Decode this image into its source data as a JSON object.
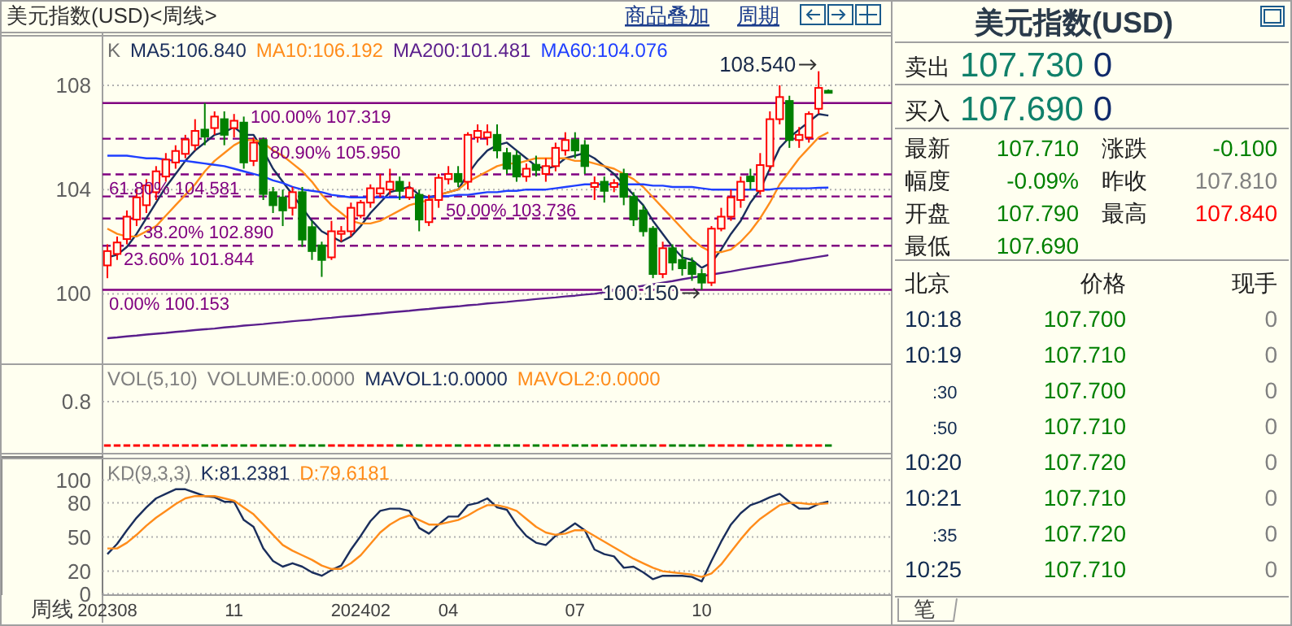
{
  "chart_data": [
    {
      "type": "candlestick",
      "title": "美元指数(USD)<周线>",
      "tick_labels": "y",
      "grid": "y",
      "categories": [
        null,
        null,
        null,
        null,
        null,
        null,
        null,
        null,
        null,
        null,
        null,
        null,
        null,
        null,
        null,
        null,
        null,
        null,
        null,
        null,
        null,
        null,
        null,
        null,
        null,
        null,
        null,
        null,
        null,
        null,
        null,
        null,
        null,
        null,
        null,
        null,
        null,
        null,
        null,
        null,
        null,
        null,
        null,
        null,
        null,
        null,
        null,
        null,
        null,
        null,
        null,
        null,
        null,
        null,
        null,
        null,
        null,
        null,
        null,
        null,
        null,
        null,
        null,
        null,
        null,
        null,
        null,
        null,
        null,
        null,
        null,
        null,
        null,
        null,
        null
      ],
      "ohlc": [
        [
          101.09,
          101.9,
          100.6,
          101.64
        ],
        [
          101.53,
          102.2,
          101.3,
          101.97
        ],
        [
          102.1,
          103.2,
          101.9,
          102.96
        ],
        [
          102.85,
          104.0,
          102.6,
          103.7
        ],
        [
          103.4,
          104.4,
          103.1,
          104.16
        ],
        [
          103.9,
          104.9,
          103.6,
          104.7
        ],
        [
          104.5,
          105.4,
          104.3,
          105.15
        ],
        [
          105.04,
          105.7,
          104.8,
          105.48
        ],
        [
          105.37,
          106.1,
          105.2,
          105.92
        ],
        [
          105.7,
          106.7,
          105.5,
          106.25
        ],
        [
          106.3,
          107.319,
          105.7,
          106.03
        ],
        [
          106.36,
          107.0,
          106.1,
          106.8
        ],
        [
          106.7,
          107.0,
          105.7,
          106.1
        ],
        [
          106.36,
          106.9,
          106.0,
          106.64
        ],
        [
          106.57,
          106.8,
          104.8,
          105.04
        ],
        [
          105.1,
          106.0,
          104.9,
          105.8
        ],
        [
          105.9,
          106.0,
          103.6,
          103.83
        ],
        [
          103.9,
          104.1,
          103.1,
          103.4
        ],
        [
          103.7,
          104.0,
          102.6,
          103.2
        ],
        [
          103.3,
          104.1,
          103.0,
          103.9
        ],
        [
          103.9,
          104.1,
          101.8,
          102.08
        ],
        [
          102.56,
          102.8,
          101.3,
          101.64
        ],
        [
          101.86,
          102.0,
          100.65,
          101.3
        ],
        [
          101.4,
          102.8,
          101.3,
          102.4
        ],
        [
          102.3,
          102.6,
          102.0,
          102.4
        ],
        [
          102.4,
          103.5,
          102.2,
          103.3
        ],
        [
          103.0,
          103.6,
          102.9,
          103.5
        ],
        [
          103.5,
          104.2,
          103.3,
          104.05
        ],
        [
          103.85,
          104.6,
          103.7,
          104.05
        ],
        [
          104.0,
          104.8,
          103.8,
          104.3
        ],
        [
          104.3,
          104.5,
          103.6,
          103.95
        ],
        [
          103.7,
          104.3,
          103.6,
          104.05
        ],
        [
          103.8,
          104.0,
          102.4,
          102.85
        ],
        [
          102.75,
          103.8,
          102.6,
          103.6
        ],
        [
          103.6,
          104.6,
          103.3,
          104.45
        ],
        [
          104.4,
          104.9,
          104.2,
          104.6
        ],
        [
          104.6,
          104.9,
          104.1,
          104.3
        ],
        [
          104.3,
          106.2,
          104.0,
          106.1
        ],
        [
          106.0,
          106.5,
          105.8,
          106.25
        ],
        [
          106.0,
          106.5,
          105.7,
          106.2
        ],
        [
          106.1,
          106.5,
          105.2,
          105.5
        ],
        [
          105.4,
          105.6,
          104.6,
          104.8
        ],
        [
          105.3,
          105.5,
          104.3,
          104.5
        ],
        [
          104.5,
          105.0,
          104.3,
          104.8
        ],
        [
          104.95,
          105.3,
          104.5,
          104.75
        ],
        [
          104.6,
          105.2,
          104.3,
          104.9
        ],
        [
          104.9,
          105.8,
          104.7,
          105.6
        ],
        [
          105.5,
          106.2,
          105.3,
          105.9
        ],
        [
          105.9,
          106.2,
          105.2,
          105.5
        ],
        [
          105.7,
          105.9,
          104.6,
          104.9
        ],
        [
          104.1,
          104.5,
          103.6,
          104.25
        ],
        [
          104.3,
          104.5,
          103.5,
          103.95
        ],
        [
          104.1,
          104.4,
          103.9,
          104.25
        ],
        [
          104.6,
          104.8,
          103.4,
          103.72
        ],
        [
          103.72,
          103.9,
          102.6,
          102.85
        ],
        [
          103.2,
          103.4,
          102.2,
          102.4
        ],
        [
          102.5,
          102.6,
          100.6,
          100.76
        ],
        [
          100.76,
          102.0,
          100.6,
          101.75
        ],
        [
          101.75,
          101.9,
          100.9,
          101.2
        ],
        [
          101.3,
          101.7,
          100.7,
          100.98
        ],
        [
          101.2,
          101.4,
          100.5,
          100.76
        ],
        [
          100.76,
          100.95,
          100.15,
          100.43
        ],
        [
          100.43,
          102.6,
          100.3,
          102.5
        ],
        [
          102.5,
          103.3,
          102.4,
          102.96
        ],
        [
          102.96,
          104.0,
          102.8,
          103.7
        ],
        [
          103.6,
          104.5,
          103.3,
          104.3
        ],
        [
          104.5,
          104.8,
          104.0,
          104.32
        ],
        [
          103.95,
          105.4,
          103.8,
          104.94
        ],
        [
          104.9,
          107.0,
          104.7,
          106.7
        ],
        [
          106.7,
          108.0,
          106.5,
          107.55
        ],
        [
          107.4,
          107.6,
          105.6,
          105.9
        ],
        [
          105.9,
          106.4,
          105.6,
          106.1
        ],
        [
          106.0,
          107.0,
          105.8,
          106.9
        ],
        [
          107.1,
          108.54,
          106.9,
          107.9
        ],
        [
          107.79,
          107.84,
          107.69,
          107.71
        ]
      ],
      "series": [
        {
          "name": "MA5:106.840",
          "type": "line",
          "color": "#1a2e5c",
          "values": [
            101.4,
            101.5,
            101.8,
            102.3,
            102.9,
            103.5,
            104.1,
            104.6,
            105.1,
            105.5,
            105.8,
            106.1,
            106.2,
            106.4,
            106.1,
            106.1,
            105.5,
            104.8,
            104.3,
            103.8,
            103.3,
            102.8,
            102.4,
            102.2,
            102.0,
            102.2,
            102.6,
            103.1,
            103.5,
            103.9,
            104.0,
            104.1,
            103.8,
            103.7,
            103.8,
            103.9,
            104.0,
            104.6,
            105.1,
            105.5,
            105.7,
            105.8,
            105.5,
            105.2,
            104.9,
            104.8,
            104.9,
            105.2,
            105.3,
            105.4,
            105.2,
            104.9,
            104.6,
            104.2,
            103.8,
            103.4,
            102.8,
            102.3,
            101.8,
            101.4,
            101.3,
            101.0,
            101.2,
            101.7,
            102.3,
            102.8,
            103.5,
            104.0,
            104.8,
            105.6,
            106.0,
            106.3,
            106.6,
            106.9,
            106.84
          ]
        },
        {
          "name": "MA10:106.192",
          "type": "line",
          "color": "#ff8c1a",
          "values": [
            102.5,
            102.3,
            102.2,
            102.2,
            102.4,
            102.6,
            103.0,
            103.4,
            103.8,
            104.2,
            104.7,
            105.1,
            105.4,
            105.7,
            105.9,
            105.9,
            105.8,
            105.5,
            105.3,
            105.0,
            104.7,
            104.3,
            103.8,
            103.4,
            103.1,
            102.8,
            102.7,
            102.7,
            102.8,
            103.0,
            103.2,
            103.4,
            103.5,
            103.6,
            103.8,
            103.9,
            104.0,
            104.3,
            104.5,
            104.7,
            104.9,
            105.0,
            105.0,
            105.1,
            105.2,
            105.2,
            105.2,
            105.2,
            105.1,
            105.1,
            105.0,
            104.9,
            104.8,
            104.6,
            104.4,
            104.1,
            103.7,
            103.3,
            102.9,
            102.5,
            102.1,
            101.8,
            101.6,
            101.6,
            101.7,
            102.0,
            102.4,
            102.9,
            103.5,
            104.2,
            104.7,
            105.2,
            105.6,
            106.0,
            106.192
          ]
        },
        {
          "name": "MA200:101.481",
          "type": "line",
          "color": "#5a1e8c",
          "values": [
            98.3,
            98.33,
            98.37,
            98.4,
            98.44,
            98.47,
            98.5,
            98.54,
            98.57,
            98.61,
            98.64,
            98.67,
            98.71,
            98.74,
            98.78,
            98.81,
            98.84,
            98.88,
            98.91,
            98.95,
            98.98,
            99.01,
            99.05,
            99.08,
            99.12,
            99.15,
            99.18,
            99.22,
            99.25,
            99.29,
            99.32,
            99.35,
            99.39,
            99.42,
            99.46,
            99.49,
            99.52,
            99.56,
            99.59,
            99.63,
            99.66,
            99.69,
            99.73,
            99.76,
            99.8,
            99.83,
            99.86,
            99.9,
            99.93,
            99.97,
            100.0,
            100.06,
            100.12,
            100.19,
            100.25,
            100.31,
            100.37,
            100.43,
            100.49,
            100.56,
            100.62,
            100.68,
            100.74,
            100.8,
            100.86,
            100.93,
            100.99,
            101.05,
            101.11,
            101.17,
            101.23,
            101.3,
            101.36,
            101.42,
            101.481
          ]
        },
        {
          "name": "MA60:104.076",
          "type": "line",
          "color": "#1f3fff",
          "values": [
            105.3,
            105.3,
            105.3,
            105.25,
            105.2,
            105.2,
            105.15,
            105.1,
            105.1,
            105.05,
            105.0,
            104.95,
            104.9,
            104.8,
            104.7,
            104.6,
            104.5,
            104.35,
            104.25,
            104.1,
            104.0,
            103.95,
            103.9,
            103.8,
            103.75,
            103.7,
            103.7,
            103.7,
            103.7,
            103.7,
            103.7,
            103.7,
            103.7,
            103.7,
            103.75,
            103.75,
            103.8,
            103.8,
            103.85,
            103.9,
            103.9,
            103.95,
            103.95,
            104.0,
            104.0,
            104.0,
            104.05,
            104.1,
            104.15,
            104.2,
            104.2,
            104.2,
            104.2,
            104.2,
            104.2,
            104.2,
            104.15,
            104.15,
            104.1,
            104.1,
            104.1,
            104.05,
            104.0,
            104.0,
            104.0,
            104.0,
            104.0,
            104.0,
            104.0,
            104.05,
            104.05,
            104.05,
            104.05,
            104.07,
            104.076
          ]
        }
      ],
      "ylim": [
        97.3,
        109.9
      ],
      "yticks": [
        100,
        104,
        108
      ],
      "ref_lines": [
        {
          "axis": "y",
          "value": 107.319,
          "label": "100.00% 107.319",
          "color": "#800080",
          "line_style": "solid"
        },
        {
          "axis": "y",
          "value": 105.95,
          "label": "80.90% 105.950",
          "color": "#800080",
          "line_style": "dashed"
        },
        {
          "axis": "y",
          "value": 104.581,
          "label": "61.80% 104.581",
          "color": "#800080",
          "line_style": "dashed"
        },
        {
          "axis": "y",
          "value": 103.736,
          "label": "50.00% 103.736",
          "color": "#800080",
          "line_style": "dashed"
        },
        {
          "axis": "y",
          "value": 102.89,
          "label": "38.20% 102.890",
          "color": "#800080",
          "line_style": "dashed"
        },
        {
          "axis": "y",
          "value": 101.844,
          "label": "23.60% 101.844",
          "color": "#800080",
          "line_style": "dashed"
        },
        {
          "axis": "y",
          "value": 100.153,
          "label": "0.00% 100.153",
          "color": "#800080",
          "line_style": "solid"
        }
      ],
      "annotations": [
        "K",
        "商品叠加",
        "周期",
        "108.540",
        "100.150"
      ]
    },
    {
      "type": "other",
      "categories": [
        null,
        null,
        null,
        null,
        null,
        null,
        null,
        null,
        null,
        null,
        null,
        null,
        null,
        null,
        null,
        null,
        null,
        null,
        null,
        null,
        null,
        null,
        null,
        null,
        null,
        null,
        null,
        null,
        null,
        null,
        null,
        null,
        null,
        null,
        null,
        null,
        null,
        null,
        null,
        null,
        null,
        null,
        null,
        null,
        null,
        null,
        null,
        null,
        null,
        null,
        null,
        null,
        null,
        null,
        null,
        null,
        null,
        null,
        null,
        null,
        null,
        null,
        null,
        null,
        null,
        null,
        null,
        null,
        null,
        null,
        null,
        null,
        null,
        null,
        null
      ],
      "annotations": [
        "VOL(5,10)",
        "VOLUME:0.0000",
        "MAVOL1:0.0000",
        "MAVOL2:0.0000",
        "0.8"
      ],
      "colors": [
        "#808080",
        "#808080",
        "#1a2e5c",
        "#ff8c1a",
        "#606060"
      ]
    },
    {
      "type": "line",
      "grid": "y",
      "xlabel": "周线",
      "categories": [
        "202308",
        null,
        null,
        null,
        null,
        null,
        null,
        null,
        null,
        null,
        null,
        null,
        null,
        "11",
        null,
        null,
        null,
        null,
        null,
        null,
        null,
        null,
        null,
        null,
        null,
        null,
        "202402",
        null,
        null,
        null,
        null,
        null,
        null,
        null,
        null,
        "04",
        null,
        null,
        null,
        null,
        null,
        null,
        null,
        null,
        null,
        null,
        null,
        null,
        "07",
        null,
        null,
        null,
        null,
        null,
        null,
        null,
        null,
        null,
        null,
        null,
        null,
        "10",
        null,
        null,
        null,
        null,
        null,
        null,
        null,
        null,
        null,
        null,
        null,
        null,
        null
      ],
      "series": [
        {
          "name": "K:81.2381",
          "color": "#1a2e5c",
          "values": [
            35,
            44,
            56,
            67,
            76,
            84,
            88,
            92,
            92,
            89,
            86,
            85,
            81,
            81,
            65,
            59,
            40,
            29,
            24,
            27,
            24,
            19,
            16,
            21,
            25,
            39,
            51,
            64,
            73,
            75,
            75,
            73,
            58,
            53,
            61,
            68,
            68,
            78,
            80,
            84,
            76,
            74,
            61,
            51,
            45,
            43,
            51,
            56,
            62,
            56,
            39,
            35,
            33,
            23,
            24,
            19,
            13,
            16,
            16,
            16,
            15,
            11,
            29,
            46,
            61,
            71,
            78,
            81,
            85,
            88,
            81,
            75,
            75,
            79,
            81.2381
          ]
        },
        {
          "name": "D:79.6181",
          "color": "#ff8c1a",
          "values": [
            40,
            40,
            45,
            52,
            60,
            67,
            73,
            79,
            84,
            86,
            86,
            86,
            84,
            82,
            76,
            70,
            61,
            52,
            43,
            38,
            34,
            30,
            25,
            22,
            22,
            27,
            34,
            44,
            54,
            61,
            66,
            69,
            65,
            61,
            61,
            63,
            65,
            69,
            74,
            78,
            78,
            76,
            73,
            66,
            59,
            54,
            52,
            53,
            56,
            56,
            51,
            46,
            41,
            36,
            31,
            27,
            23,
            20,
            19,
            18,
            17,
            15,
            18,
            26,
            37,
            48,
            58,
            66,
            72,
            78,
            80,
            80,
            79,
            79,
            79.6181
          ]
        }
      ],
      "ylim": [
        -1,
        119
      ],
      "yticks": [
        0,
        20,
        50,
        80,
        100
      ],
      "annotations": [
        "KD(9,3,3)"
      ]
    },
    {
      "type": "other",
      "title": "美元指数(USD)",
      "annotations": [
        "卖出",
        "107.730",
        "0",
        "买入",
        "107.690",
        "0",
        "最新",
        "107.710",
        "涨跌",
        "-0.100",
        "幅度",
        "-0.09%",
        "昨收",
        "107.810",
        "开盘",
        "107.790",
        "最高",
        "107.840",
        "最低",
        "107.690",
        "北京",
        "价格",
        "现手",
        "10:18",
        "107.700",
        "0",
        "10:19",
        "107.710",
        "0",
        ":30",
        "107.700",
        "0",
        ":50",
        "107.710",
        "0",
        "10:20",
        "107.720",
        "0",
        "10:21",
        "107.710",
        "0",
        ":35",
        "107.720",
        "0",
        "10:25",
        "107.710",
        "0",
        "笔"
      ],
      "colors": [
        "#202020",
        "#10806a",
        "#102a6a",
        "#202020",
        "#10806a",
        "#102a6a",
        "#202020",
        "#008000",
        "#202020",
        "#008000",
        "#202020",
        "#008000",
        "#202020",
        "#808080",
        "#202020",
        "#008000",
        "#202020",
        "#ff0000",
        "#202020",
        "#008000",
        "#202020",
        "#202020",
        "#202020",
        "#102a50",
        "#008000",
        "#808080",
        "#102a50",
        "#008000",
        "#808080",
        "#102a50",
        "#008000",
        "#808080",
        "#102a50",
        "#008000",
        "#808080",
        "#102a50",
        "#008000",
        "#808080",
        "#102a50",
        "#008000",
        "#808080",
        "#102a50",
        "#008000",
        "#808080",
        "#102a50",
        "#008000",
        "#808080",
        "#404040"
      ]
    }
  ]
}
